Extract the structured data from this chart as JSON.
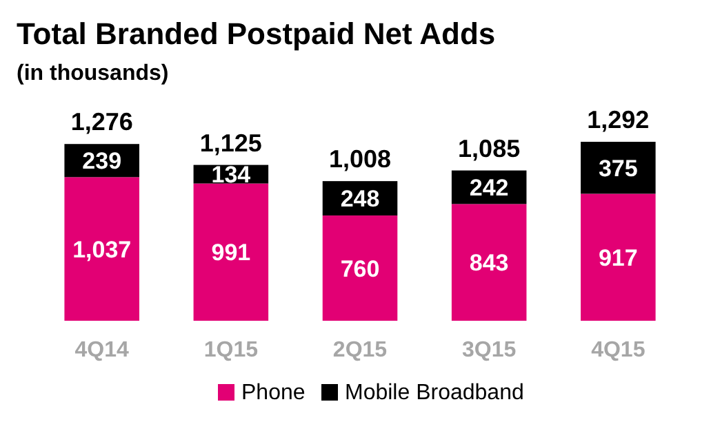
{
  "chart_data": {
    "type": "bar",
    "title": "Total Branded Postpaid Net Adds",
    "subtitle": "(in thousands)",
    "categories": [
      "4Q14",
      "1Q15",
      "2Q15",
      "3Q15",
      "4Q15"
    ],
    "stacked": true,
    "series": [
      {
        "name": "Phone",
        "color": "#e20074",
        "values": [
          1037,
          991,
          760,
          843,
          917
        ],
        "value_labels": [
          "1,037",
          "991",
          "760",
          "843",
          "917"
        ]
      },
      {
        "name": "Mobile Broadband",
        "color": "#000000",
        "values": [
          239,
          134,
          248,
          242,
          375
        ],
        "value_labels": [
          "239",
          "134",
          "248",
          "242",
          "375"
        ]
      }
    ],
    "totals": [
      "1,276",
      "1,125",
      "1,008",
      "1,085",
      "1,292"
    ],
    "legend": "bottom",
    "grid": false
  }
}
